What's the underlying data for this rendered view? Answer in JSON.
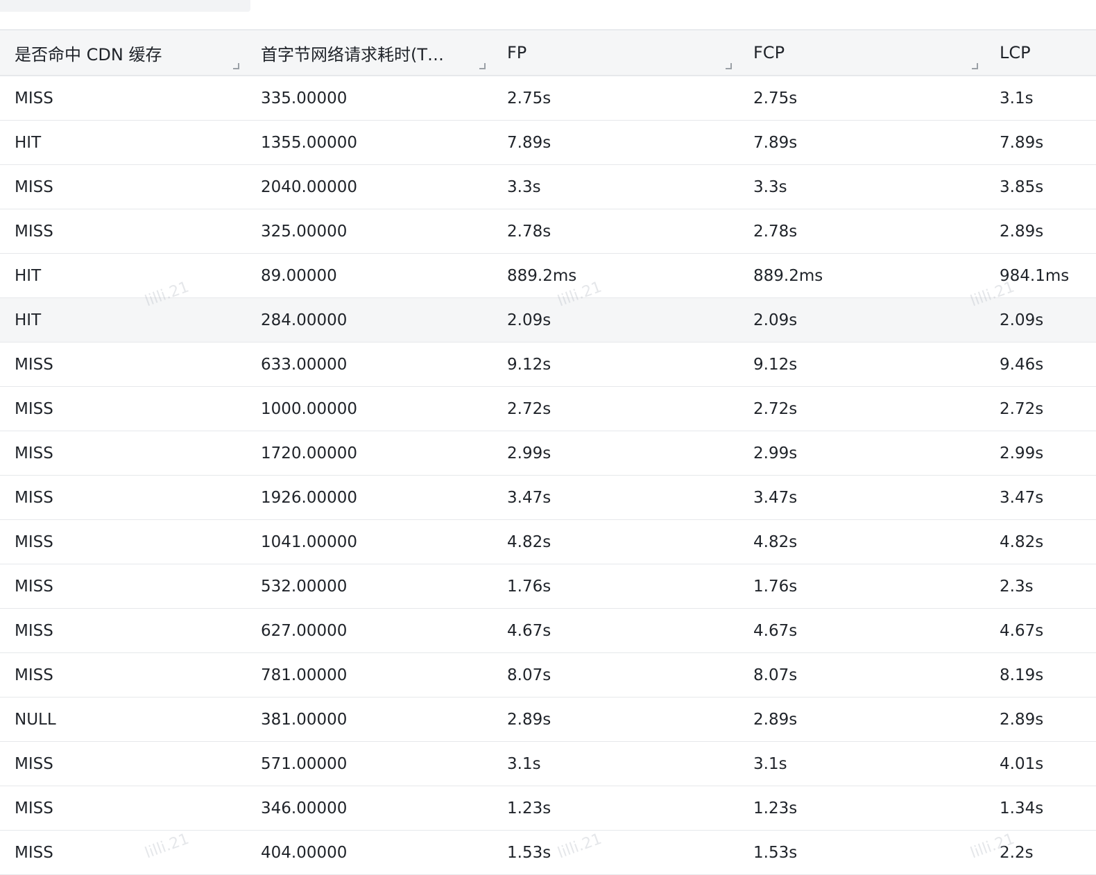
{
  "table": {
    "columns": [
      "是否命中 CDN 缓存",
      "首字节网络请求耗时(T…",
      "FP",
      "FCP",
      "LCP"
    ],
    "rows": [
      [
        "MISS",
        "335.00000",
        "2.75s",
        "2.75s",
        "3.1s"
      ],
      [
        "HIT",
        "1355.00000",
        "7.89s",
        "7.89s",
        "7.89s"
      ],
      [
        "MISS",
        "2040.00000",
        "3.3s",
        "3.3s",
        "3.85s"
      ],
      [
        "MISS",
        "325.00000",
        "2.78s",
        "2.78s",
        "2.89s"
      ],
      [
        "HIT",
        "89.00000",
        "889.2ms",
        "889.2ms",
        "984.1ms"
      ],
      [
        "HIT",
        "284.00000",
        "2.09s",
        "2.09s",
        "2.09s"
      ],
      [
        "MISS",
        "633.00000",
        "9.12s",
        "9.12s",
        "9.46s"
      ],
      [
        "MISS",
        "1000.00000",
        "2.72s",
        "2.72s",
        "2.72s"
      ],
      [
        "MISS",
        "1720.00000",
        "2.99s",
        "2.99s",
        "2.99s"
      ],
      [
        "MISS",
        "1926.00000",
        "3.47s",
        "3.47s",
        "3.47s"
      ],
      [
        "MISS",
        "1041.00000",
        "4.82s",
        "4.82s",
        "4.82s"
      ],
      [
        "MISS",
        "532.00000",
        "1.76s",
        "1.76s",
        "2.3s"
      ],
      [
        "MISS",
        "627.00000",
        "4.67s",
        "4.67s",
        "4.67s"
      ],
      [
        "MISS",
        "781.00000",
        "8.07s",
        "8.07s",
        "8.19s"
      ],
      [
        "NULL",
        "381.00000",
        "2.89s",
        "2.89s",
        "2.89s"
      ],
      [
        "MISS",
        "571.00000",
        "3.1s",
        "3.1s",
        "4.01s"
      ],
      [
        "MISS",
        "346.00000",
        "1.23s",
        "1.23s",
        "1.34s"
      ],
      [
        "MISS",
        "404.00000",
        "1.53s",
        "1.53s",
        "2.2s"
      ]
    ],
    "highlighted_row": 5
  },
  "watermark": {
    "text": "lilli.21"
  },
  "colors": {
    "header_bg": "#f5f6f7",
    "highlight_bg": "#f5f6f7",
    "border": "#e6e8eb",
    "text": "#1f2329"
  }
}
